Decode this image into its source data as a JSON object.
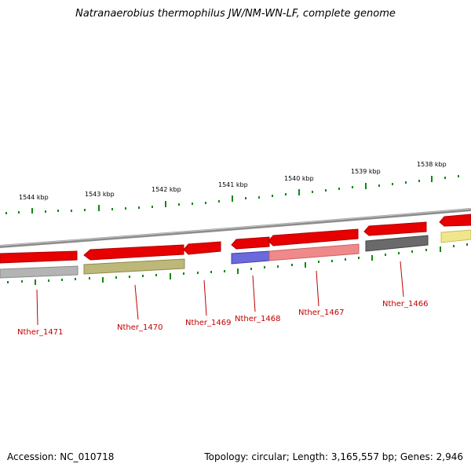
{
  "title": "Natranaerobius thermophilus JW/NM-WN-LF, complete genome",
  "accession": "Accession: NC_010718",
  "topology": "Topology: circular; Length: 3,165,557 bp; Genes: 2,946",
  "scale_labels": [
    "1544 kbp",
    "1543 kbp",
    "1542 kbp",
    "1541 kbp",
    "1540 kbp",
    "1539 kbp",
    "1538 kbp"
  ],
  "gene_labels": [
    "Nther_1471",
    "Nther_1470",
    "Nther_1469",
    "Nther_1468",
    "Nther_1467",
    "Nther_1466"
  ],
  "colors": {
    "backbone": "#8c8c8c",
    "arrow": "#e60000",
    "tick": "#118811",
    "label": "#c00000"
  },
  "tracks": [
    {
      "color": "#b4b4b4",
      "edge": "#8a8a8a"
    },
    {
      "color": "#bdb77a",
      "edge": "#8f8a4a"
    },
    {
      "color": "#6a6adc",
      "edge": "#4040b0"
    },
    {
      "color": "#f08a8a",
      "edge": "#c86262"
    },
    {
      "color": "#6a6a6a",
      "edge": "#444444"
    },
    {
      "color": "#f0e68c",
      "edge": "#c8bd5a"
    }
  ]
}
